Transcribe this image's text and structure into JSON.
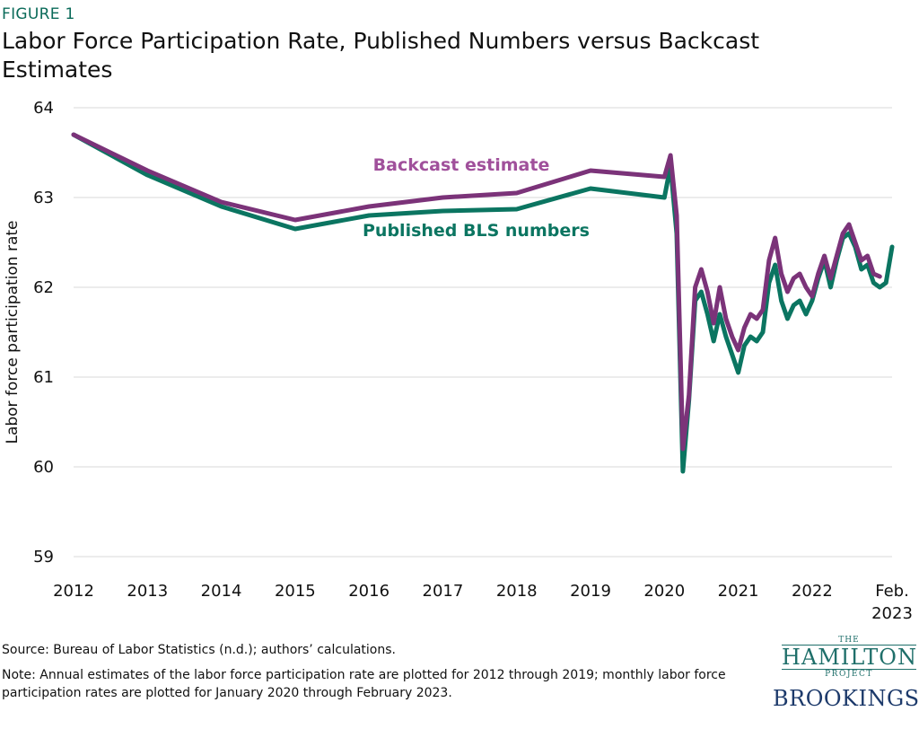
{
  "figure_label": "FIGURE 1",
  "title": "Labor Force Participation Rate, Published Numbers versus Backcast Estimates",
  "source": "Source: Bureau of Labor Statistics (n.d.); authors’ calculations.",
  "note": "Note: Annual estimates of the labor force participation rate are plotted for 2012 through 2019; monthly labor force participation rates are plotted for January 2020 through February 2023.",
  "logos": {
    "hamilton_the": "THE",
    "hamilton_name": "HAMILTON",
    "hamilton_project": "PROJECT",
    "brookings": "BROOKINGS"
  },
  "colors": {
    "backcast": "#7b3379",
    "published": "#0b7561",
    "grid": "#d9d9d9",
    "label_backcast": "#a0509b",
    "label_published": "#0b7561"
  },
  "chart_data": {
    "type": "line",
    "title": "Labor Force Participation Rate, Published Numbers versus Backcast Estimates",
    "xlabel": "",
    "ylabel": "Labor force participation rate",
    "ylim": [
      59,
      64
    ],
    "yticks": [
      59,
      60,
      61,
      62,
      63,
      64
    ],
    "grid": "horizontal",
    "x_ticks": [
      {
        "x": 2012,
        "label": "2012"
      },
      {
        "x": 2013,
        "label": "2013"
      },
      {
        "x": 2014,
        "label": "2014"
      },
      {
        "x": 2015,
        "label": "2015"
      },
      {
        "x": 2016,
        "label": "2016"
      },
      {
        "x": 2017,
        "label": "2017"
      },
      {
        "x": 2018,
        "label": "2018"
      },
      {
        "x": 2019,
        "label": "2019"
      },
      {
        "x": 2020,
        "label": "2020"
      },
      {
        "x": 2021,
        "label": "2021"
      },
      {
        "x": 2022,
        "label": "2022"
      },
      {
        "x": 2023.083,
        "label": "Feb.",
        "label2": "2023"
      }
    ],
    "x": [
      2012,
      2013,
      2014,
      2015,
      2016,
      2017,
      2018,
      2019,
      2020,
      2020.083,
      2020.167,
      2020.25,
      2020.333,
      2020.417,
      2020.5,
      2020.583,
      2020.667,
      2020.75,
      2020.833,
      2020.917,
      2021,
      2021.083,
      2021.167,
      2021.25,
      2021.333,
      2021.417,
      2021.5,
      2021.583,
      2021.667,
      2021.75,
      2021.833,
      2021.917,
      2022,
      2022.083,
      2022.167,
      2022.25,
      2022.333,
      2022.417,
      2022.5,
      2022.583,
      2022.667,
      2022.75,
      2022.833,
      2022.917,
      2023,
      2023.083
    ],
    "series": [
      {
        "name": "Backcast estimate",
        "color": "#7b3379",
        "values": [
          63.7,
          63.3,
          62.95,
          62.75,
          62.9,
          63.0,
          63.05,
          63.3,
          63.23,
          63.47,
          62.8,
          60.2,
          60.8,
          62.0,
          62.2,
          61.95,
          61.6,
          62.0,
          61.65,
          61.45,
          61.3,
          61.55,
          61.7,
          61.65,
          61.75,
          62.3,
          62.55,
          62.15,
          61.95,
          62.1,
          62.15,
          62.0,
          61.9,
          62.15,
          62.35,
          62.1,
          62.35,
          62.6,
          62.7,
          62.5,
          62.3,
          62.35,
          62.15,
          62.12,
          null,
          null
        ]
      },
      {
        "name": "Published BLS numbers",
        "color": "#0b7561",
        "values": [
          63.7,
          63.25,
          62.9,
          62.65,
          62.8,
          62.85,
          62.87,
          63.1,
          63.0,
          63.35,
          62.6,
          59.95,
          60.75,
          61.85,
          61.95,
          61.7,
          61.4,
          61.7,
          61.45,
          61.25,
          61.05,
          61.35,
          61.45,
          61.4,
          61.5,
          62.05,
          62.25,
          61.85,
          61.65,
          61.8,
          61.85,
          61.7,
          61.85,
          62.1,
          62.3,
          62.0,
          62.3,
          62.55,
          62.6,
          62.45,
          62.2,
          62.25,
          62.05,
          62.0,
          62.05,
          62.45
        ]
      }
    ],
    "annotations": [
      {
        "text": "Backcast estimate",
        "series": "Backcast estimate",
        "x": 2017.25,
        "y": 63.3
      },
      {
        "text": "Published BLS numbers",
        "series": "Published BLS numbers",
        "x": 2017.45,
        "y": 62.57
      }
    ]
  }
}
